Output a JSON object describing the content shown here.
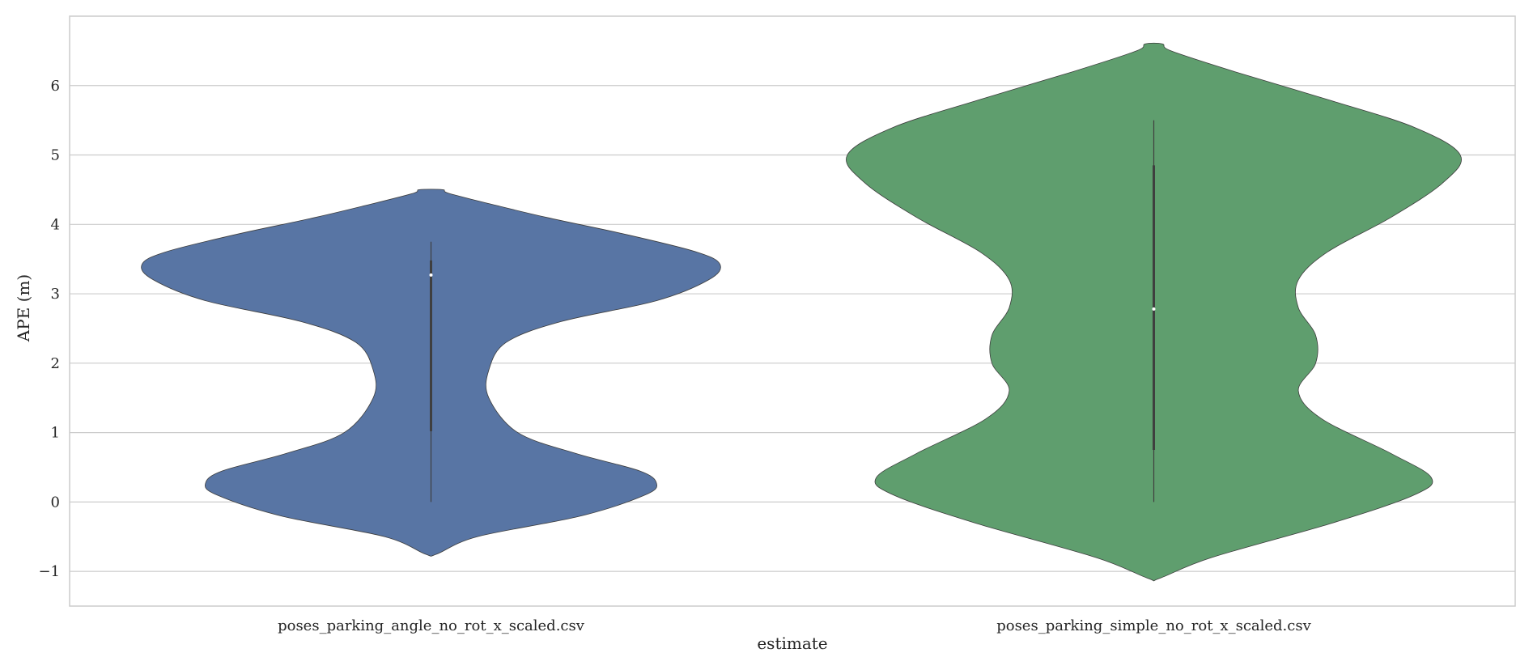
{
  "chart_data": {
    "type": "violin",
    "xlabel": "estimate",
    "ylabel": "APE (m)",
    "ylim": [
      -1.5,
      7.0
    ],
    "yticks": [
      -1,
      0,
      1,
      2,
      3,
      4,
      5,
      6
    ],
    "ytick_labels": [
      "−1",
      "0",
      "1",
      "2",
      "3",
      "4",
      "5",
      "6"
    ],
    "grid": "horizontal",
    "categories": [
      "poses_parking_angle_no_rot_x_scaled.csv",
      "poses_parking_simple_no_rot_x_scaled.csv"
    ],
    "series": [
      {
        "category": "poses_parking_angle_no_rot_x_scaled.csv",
        "color": "#5875a4",
        "min": 0.0,
        "q1": 1.02,
        "median": 3.27,
        "q3": 3.48,
        "max": 3.75,
        "density_extent": [
          -0.75,
          4.5
        ],
        "density_profile": [
          [
            -0.75,
            0.02
          ],
          [
            -0.5,
            0.16
          ],
          [
            -0.2,
            0.52
          ],
          [
            0.1,
            0.74
          ],
          [
            0.27,
            0.78
          ],
          [
            0.45,
            0.72
          ],
          [
            0.7,
            0.5
          ],
          [
            1.0,
            0.3
          ],
          [
            1.5,
            0.2
          ],
          [
            1.9,
            0.2
          ],
          [
            2.3,
            0.26
          ],
          [
            2.6,
            0.45
          ],
          [
            2.9,
            0.78
          ],
          [
            3.2,
            0.96
          ],
          [
            3.42,
            1.0
          ],
          [
            3.6,
            0.92
          ],
          [
            3.85,
            0.68
          ],
          [
            4.1,
            0.4
          ],
          [
            4.3,
            0.2
          ],
          [
            4.45,
            0.06
          ],
          [
            4.5,
            0.04
          ]
        ]
      },
      {
        "category": "poses_parking_simple_no_rot_x_scaled.csv",
        "color": "#5f9e6e",
        "min": 0.0,
        "q1": 0.75,
        "median": 2.78,
        "q3": 4.85,
        "max": 5.5,
        "density_extent": [
          -1.1,
          6.6
        ],
        "density_profile": [
          [
            -1.1,
            0.02
          ],
          [
            -0.8,
            0.2
          ],
          [
            -0.3,
            0.62
          ],
          [
            0.1,
            0.9
          ],
          [
            0.35,
            0.96
          ],
          [
            0.7,
            0.82
          ],
          [
            1.2,
            0.58
          ],
          [
            1.6,
            0.5
          ],
          [
            2.0,
            0.56
          ],
          [
            2.4,
            0.56
          ],
          [
            2.8,
            0.5
          ],
          [
            3.2,
            0.5
          ],
          [
            3.6,
            0.6
          ],
          [
            4.1,
            0.82
          ],
          [
            4.6,
            1.0
          ],
          [
            5.0,
            1.06
          ],
          [
            5.4,
            0.9
          ],
          [
            5.8,
            0.6
          ],
          [
            6.2,
            0.28
          ],
          [
            6.5,
            0.06
          ],
          [
            6.6,
            0.03
          ]
        ]
      }
    ]
  }
}
